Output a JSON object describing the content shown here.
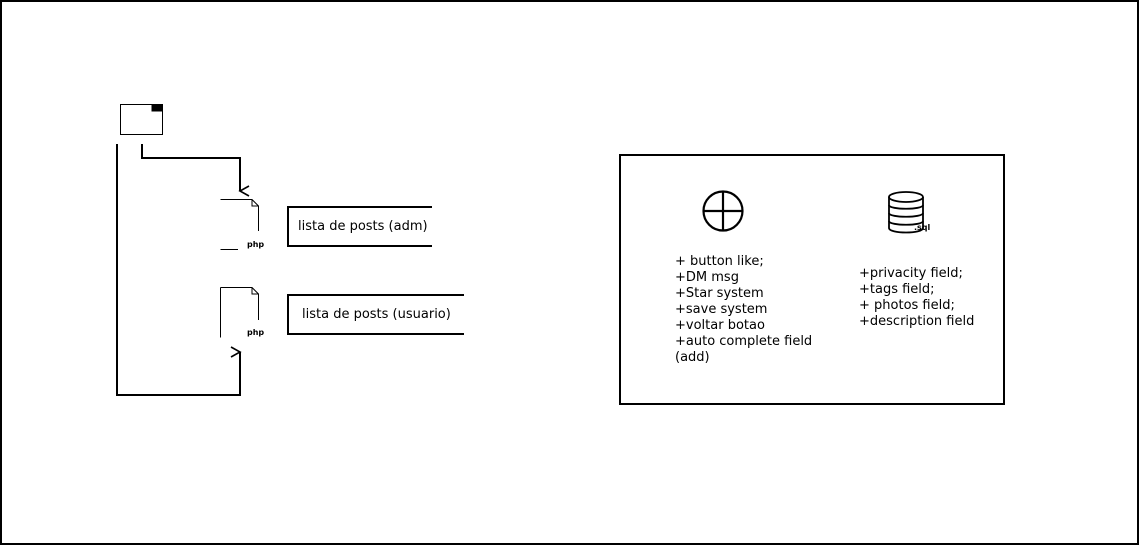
{
  "php_file_top": {
    "icon": "php-file-icon",
    "extension": "php",
    "label": "lista de posts (adm)"
  },
  "php_file_bottom": {
    "icon": "php-file-icon",
    "extension": "php",
    "label": "lista de posts (usuario)"
  },
  "folder": {
    "icon": "folder-icon"
  },
  "features_panel": {
    "globe_icon": "globe-icon",
    "database_icon": "database-icon",
    "database_extension": ".sql",
    "frontend_items": [
      "+ button like;",
      "+DM msg",
      "+Star system",
      "+save system",
      "+voltar botao",
      "+auto complete field",
      "(add)"
    ],
    "database_items": [
      "+privacity field;",
      "+tags field;",
      "+ photos field;",
      "+description field"
    ]
  }
}
